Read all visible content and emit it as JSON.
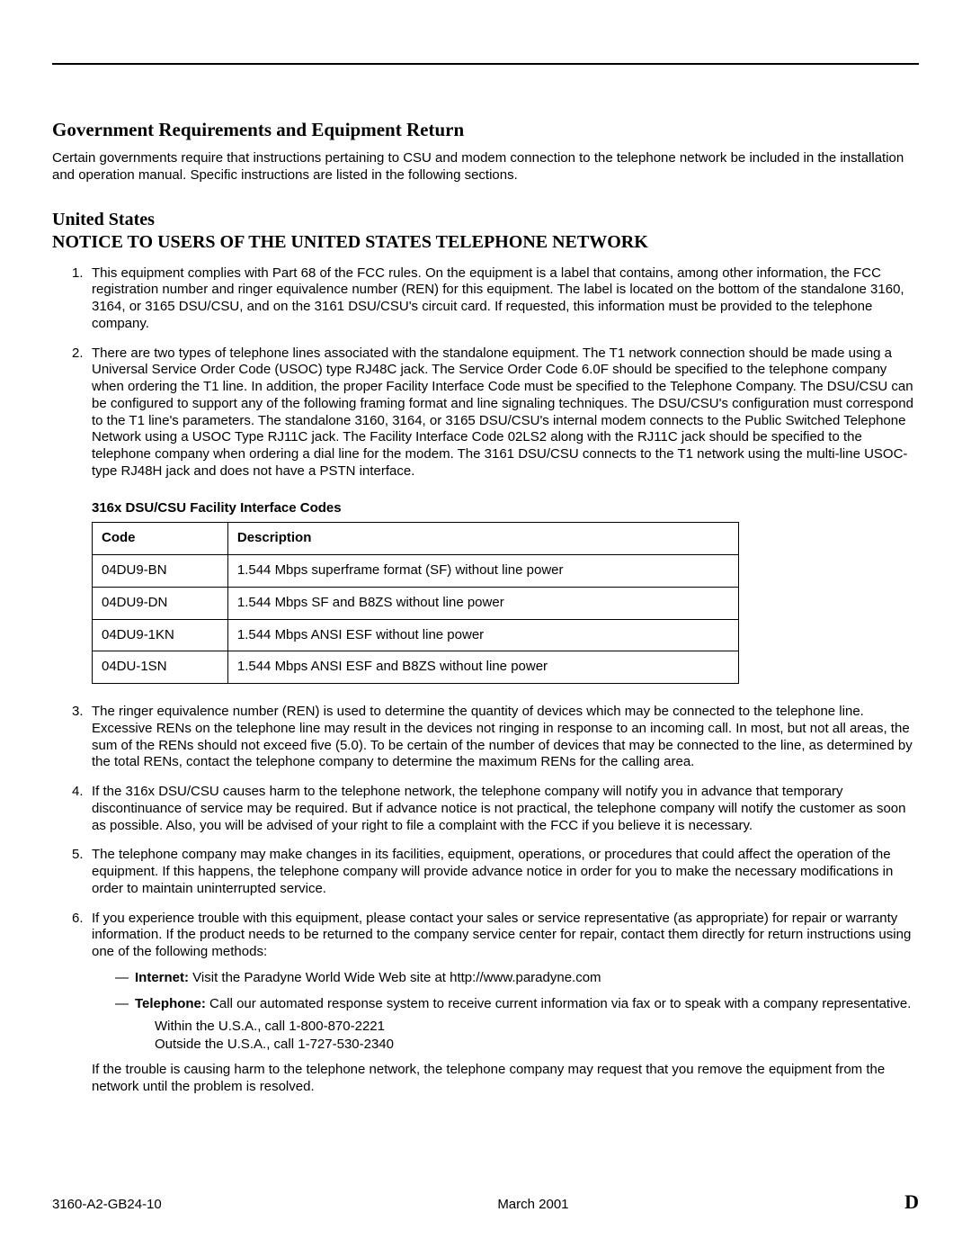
{
  "section_title": "Government Requirements and Equipment Return",
  "intro": "Certain governments require that instructions pertaining to CSU and modem connection to the telephone network be included in the installation and operation manual. Specific instructions are listed in the following sections.",
  "sub_heading": "United States",
  "notice_heading": "NOTICE TO USERS OF THE UNITED STATES TELEPHONE NETWORK",
  "item1": "This equipment complies with Part 68 of the FCC rules. On the equipment is a label that contains, among other information, the FCC registration number and ringer equivalence number (REN) for this equipment. The label is located on the bottom of the standalone 3160, 3164, or 3165 DSU/CSU, and on the 3161 DSU/CSU's circuit card. If requested, this information must be provided to the telephone company.",
  "item2": "There are two types of telephone lines associated with the standalone equipment. The T1 network connection should be made using a Universal Service Order Code (USOC) type RJ48C jack. The Service Order Code 6.0F should be specified to the telephone company when ordering the T1 line. In addition, the proper Facility Interface Code must be specified to the Telephone Company. The DSU/CSU can be configured to support any of the following framing format and line signaling techniques. The DSU/CSU's configuration must correspond to the T1 line's parameters. The standalone 3160, 3164, or 3165 DSU/CSU's internal modem connects to the Public Switched Telephone Network using a USOC Type RJ11C jack. The Facility Interface Code 02LS2 along with the RJ11C jack should be specified to the telephone company when ordering a dial line for the modem. The 3161 DSU/CSU connects to the T1 network using the multi-line USOC-type RJ48H jack and does not have a PSTN interface.",
  "table": {
    "caption": "316x DSU/CSU Facility Interface Codes",
    "headers": {
      "code": "Code",
      "desc": "Description"
    },
    "rows": [
      {
        "code": "04DU9-BN",
        "desc": "1.544 Mbps superframe format (SF) without line power"
      },
      {
        "code": "04DU9-DN",
        "desc": "1.544 Mbps SF and B8ZS without line power"
      },
      {
        "code": "04DU9-1KN",
        "desc": "1.544 Mbps ANSI ESF without line power"
      },
      {
        "code": "04DU-1SN",
        "desc": "1.544 Mbps ANSI ESF and B8ZS without line power"
      }
    ]
  },
  "item3": "The ringer equivalence number (REN) is used to determine the quantity of devices which may be connected to the telephone line. Excessive RENs on the telephone line may result in the devices not ringing in response to an incoming call. In most, but not all areas, the sum of the RENs should not exceed five (5.0). To be certain of the number of devices that may be connected to the line, as determined by the total RENs, contact the telephone company to determine the maximum RENs for the calling area.",
  "item4": "If the 316x DSU/CSU causes harm to the telephone network, the telephone company will notify you in advance that temporary discontinuance of service may be required. But if advance notice is not practical, the telephone company will notify the customer as soon as possible. Also, you will be advised of your right to file a complaint with the FCC if you believe it is necessary.",
  "item5": "The telephone company may make changes in its facilities, equipment, operations, or procedures that could affect the operation of the equipment. If this happens, the telephone company will provide advance notice in order for you to make the necessary modifications in order to maintain uninterrupted service.",
  "item6_intro": "If you experience trouble with this equipment, please contact your sales or service representative (as appropriate) for repair or warranty information. If the product needs to be returned to the company service center for repair, contact them directly for return instructions using one of the following methods:",
  "internet_label": "Internet:",
  "internet_text": " Visit the Paradyne World Wide Web site at http://www.paradyne.com",
  "telephone_label": "Telephone:",
  "telephone_text": " Call our automated response system to receive current information via fax or to speak with a company representative.",
  "phone_us": "Within the U.S.A., call 1-800-870-2221",
  "phone_outside": "Outside the U.S.A., call 1-727-530-2340",
  "item6_trouble": "If the trouble is causing harm to the telephone network, the telephone company may request that you remove the equipment from the network until the problem is resolved.",
  "footer": {
    "docnum": "3160-A2-GB24-10",
    "date": "March 2001",
    "page": "D"
  }
}
